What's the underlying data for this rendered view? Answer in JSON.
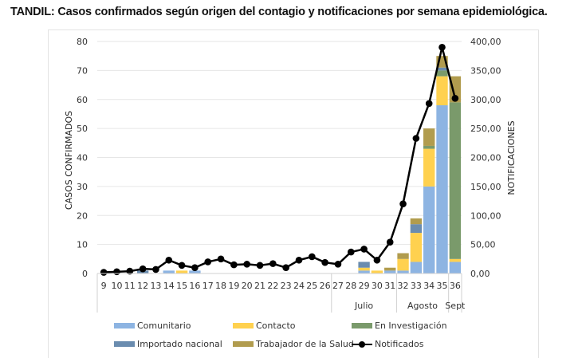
{
  "chart_data": {
    "type": "bar",
    "title": "TANDIL: Casos confirmados según origen del contagio y notificaciones por semana epidemiológica.",
    "xlabel": "",
    "ylabel": "CASOS CONFIRMADOS",
    "y2label": "NOTIFICACIONES",
    "ylim": [
      0,
      80
    ],
    "y2lim": [
      0,
      400
    ],
    "yticks": [
      "0",
      "10",
      "20",
      "30",
      "40",
      "50",
      "60",
      "70",
      "80"
    ],
    "y2ticks": [
      "0,00",
      "50,00",
      "100,00",
      "150,00",
      "200,00",
      "250,00",
      "300,00",
      "350,00",
      "400,00"
    ],
    "grid": true,
    "legend_position": "bottom",
    "categories": [
      "9",
      "10",
      "11",
      "12",
      "13",
      "14",
      "15",
      "16",
      "17",
      "18",
      "19",
      "20",
      "21",
      "22",
      "23",
      "24",
      "25",
      "26",
      "27",
      "28",
      "29",
      "30",
      "31",
      "32",
      "33",
      "34",
      "35",
      "36"
    ],
    "month_groups": [
      {
        "label": "",
        "from": "9",
        "to": "26"
      },
      {
        "label": "Julio",
        "from": "27",
        "to": "31"
      },
      {
        "label": "Agosto",
        "from": "32",
        "to": "35"
      },
      {
        "label": "Sept",
        "from": "36",
        "to": "36"
      }
    ],
    "series": [
      {
        "name": "Comunitario",
        "color": "#8db4e2",
        "values": [
          0,
          0,
          0,
          0,
          0,
          1,
          0,
          1,
          0,
          0,
          0,
          0,
          0,
          0,
          0,
          0,
          0,
          0,
          0,
          0,
          1,
          0,
          1,
          1,
          4,
          30,
          58,
          4
        ]
      },
      {
        "name": "Contacto",
        "color": "#ffd14f",
        "values": [
          0,
          0,
          0,
          0,
          0,
          0,
          1,
          0,
          0,
          0,
          0,
          0,
          0,
          0,
          0,
          0,
          0,
          0,
          0,
          0,
          1,
          1,
          0,
          4,
          10,
          13,
          10,
          1
        ]
      },
      {
        "name": "En Investigación",
        "color": "#7a9a6b",
        "values": [
          0,
          0,
          0,
          0,
          0,
          0,
          0,
          0,
          0,
          0,
          0,
          0,
          0,
          0,
          0,
          0,
          0,
          0,
          0,
          0,
          0,
          0,
          0,
          0,
          0,
          1,
          2,
          54
        ]
      },
      {
        "name": "Importado nacional",
        "color": "#6a8caf",
        "values": [
          0,
          0,
          0,
          1,
          0,
          0,
          0,
          0,
          0,
          0,
          0,
          0,
          0,
          0,
          0,
          0,
          0,
          0,
          0,
          0,
          2,
          0,
          0,
          0,
          3,
          0,
          1,
          0
        ]
      },
      {
        "name": "Trabajador de la Salud",
        "color": "#b19c4e",
        "values": [
          0,
          0,
          0,
          0,
          0,
          0,
          0,
          0,
          0,
          0,
          0,
          0,
          0,
          0,
          0,
          0,
          0,
          0,
          0,
          0,
          0,
          0,
          1,
          2,
          2,
          6,
          4,
          9
        ]
      }
    ],
    "line_series": {
      "name": "Notificados",
      "color": "#000000",
      "axis": "right",
      "values": [
        2,
        3,
        4,
        8,
        7,
        23,
        14,
        10,
        20,
        25,
        15,
        16,
        14,
        17,
        10,
        23,
        29,
        19,
        16,
        37,
        42,
        23,
        54,
        120,
        233,
        293,
        390,
        302
      ]
    }
  }
}
